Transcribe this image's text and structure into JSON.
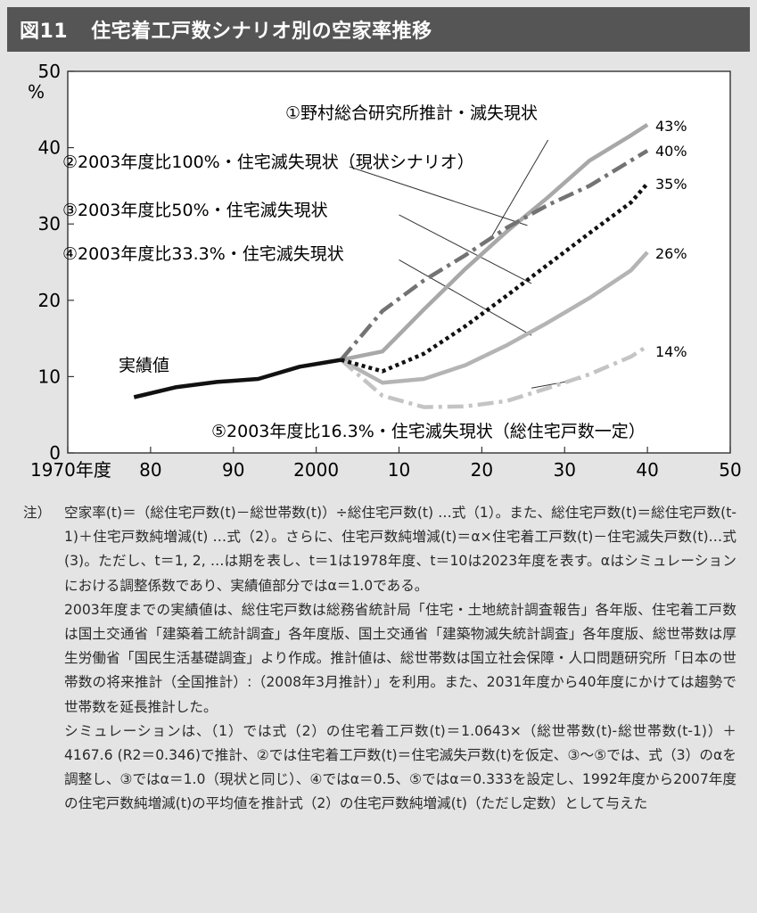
{
  "header": {
    "figure_number": "図11",
    "title": "住宅着工戸数シナリオ別の空家率推移"
  },
  "chart_data": {
    "type": "line",
    "title": "住宅着工戸数シナリオ別の空家率推移",
    "ylabel": "%",
    "ylim": [
      0,
      50
    ],
    "yticks": [
      0,
      10,
      20,
      30,
      40,
      50
    ],
    "ytick_labels": [
      "0",
      "10",
      "20",
      "30",
      "40",
      "50"
    ],
    "xlim": [
      1970,
      2050
    ],
    "xticks": [
      1970,
      1980,
      1990,
      2000,
      2010,
      2020,
      2030,
      2040,
      2050
    ],
    "xtick_labels": [
      "1970年度",
      "80",
      "90",
      "2000",
      "10",
      "20",
      "30",
      "40",
      "50"
    ],
    "grid": false,
    "series": [
      {
        "name": "実績値",
        "color": "#111111",
        "style": "solid",
        "x": [
          1978,
          1983,
          1988,
          1993,
          1998,
          2003
        ],
        "values": [
          7.3,
          8.6,
          9.3,
          9.7,
          11.3,
          12.2
        ]
      },
      {
        "name": "①野村総合研究所推計・滅失現状",
        "color": "#a8a8a8",
        "style": "solid",
        "x": [
          2003,
          2008,
          2013,
          2018,
          2023,
          2028,
          2033,
          2038,
          2040
        ],
        "values": [
          12.2,
          13.3,
          18.8,
          24.1,
          29.0,
          33.5,
          38.3,
          41.6,
          43.0
        ]
      },
      {
        "name": "②2003年度比100%・住宅滅失現状（現状シナリオ）",
        "color": "#737373",
        "style": "dashdot",
        "x": [
          2003,
          2008,
          2013,
          2018,
          2023,
          2028,
          2033,
          2038,
          2040
        ],
        "values": [
          12.2,
          18.6,
          22.6,
          25.9,
          29.5,
          32.5,
          35.0,
          38.3,
          39.6
        ]
      },
      {
        "name": "③2003年度比50%・住宅滅失現状",
        "color": "#111111",
        "style": "dotted",
        "x": [
          2003,
          2008,
          2013,
          2018,
          2023,
          2028,
          2033,
          2038,
          2040
        ],
        "values": [
          12.2,
          10.7,
          13.0,
          16.6,
          20.6,
          24.7,
          28.8,
          32.8,
          35.3
        ]
      },
      {
        "name": "④2003年度比33.3%・住宅滅失現状",
        "color": "#b4b4b4",
        "style": "solid",
        "x": [
          2003,
          2008,
          2013,
          2018,
          2023,
          2028,
          2033,
          2038,
          2040
        ],
        "values": [
          12.2,
          9.2,
          9.7,
          11.5,
          14.1,
          17.1,
          20.3,
          23.9,
          26.3
        ]
      },
      {
        "name": "⑤2003年度比16.3%・住宅滅失現状（総住宅戸数一定）",
        "color": "#c4c4c4",
        "style": "dashdot",
        "x": [
          2003,
          2008,
          2013,
          2018,
          2023,
          2028,
          2033,
          2038,
          2040
        ],
        "values": [
          12.2,
          7.5,
          6.0,
          6.1,
          6.8,
          8.5,
          10.3,
          12.6,
          14.0
        ]
      }
    ],
    "end_labels": [
      "43%",
      "40%",
      "35%",
      "26%",
      "14%"
    ],
    "actual_label": "実績値"
  },
  "notes": {
    "label": "注）",
    "paragraphs": [
      "空家率(t)＝（総住宅戸数(t)－総世帯数(t)）÷総住宅戸数(t) …式（1）。また、総住宅戸数(t)＝総住宅戸数(t-1)＋住宅戸数純増減(t) …式（2）。さらに、住宅戸数純増減(t)＝α×住宅着工戸数(t)－住宅滅失戸数(t)…式(3)。ただし、t＝1, 2, …は期を表し、t＝1は1978年度、t＝10は2023年度を表す。αはシミュレーションにおける調整係数であり、実績値部分ではα＝1.0である。",
      "2003年度までの実績値は、総住宅戸数は総務省統計局「住宅・土地統計調査報告」各年版、住宅着工戸数は国土交通省「建築着工統計調査」各年度版、国土交通省「建築物滅失統計調査」各年度版、総世帯数は厚生労働省「国民生活基礎調査」より作成。推計値は、総世帯数は国立社会保障・人口問題研究所「日本の世帯数の将来推計（全国推計）:（2008年3月推計）」を利用。また、2031年度から40年度にかけては趨勢で世帯数を延長推計した。",
      "シミュレーションは、（1）では式（2）の住宅着工戸数(t)＝1.0643×（総世帯数(t)-総世帯数(t-1)）＋4167.6 (R2＝0.346)で推計、②では住宅着工戸数(t)＝住宅滅失戸数(t)を仮定、③～⑤では、式（3）のαを調整し、③ではα＝1.0（現状と同じ）、④ではα＝0.5、⑤ではα＝0.333を設定し、1992年度から2007年度の住宅戸数純増減(t)の平均値を推計式（2）の住宅戸数純増減(t)（ただし定数）として与えた"
    ]
  }
}
